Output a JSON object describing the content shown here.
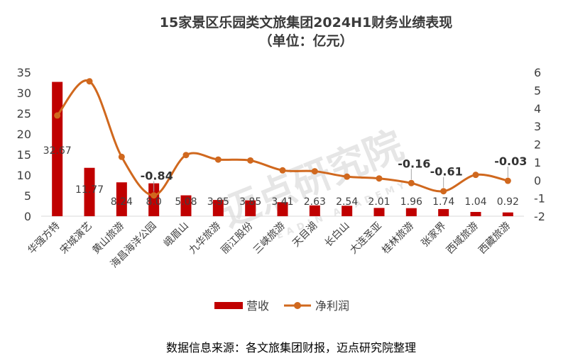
{
  "title_line1": "15家景区乐园类文旅集团2024H1财务业绩表现",
  "title_line2": "（单位：亿元）",
  "source": "数据信息来源：各文旅集团财报，迈点研究院整理",
  "watermark": "迈点研究院",
  "watermark_sub": "MEADIN ACADEMY",
  "colors": {
    "bar": "#c00000",
    "line": "#d0681e",
    "axis": "#d9d9d9"
  },
  "chart_data": {
    "type": "bar",
    "categories": [
      "华强方特",
      "宋城演艺",
      "黄山旅游",
      "海昌海洋公园",
      "峨眉山",
      "九华旅游",
      "丽江股份",
      "三峡旅游",
      "天目湖",
      "长白山",
      "大连圣亚",
      "桂林旅游",
      "张家界",
      "西域旅游",
      "西藏旅游"
    ],
    "series": [
      {
        "name": "营收",
        "type": "bar",
        "axis": "left",
        "values": [
          32.67,
          11.77,
          8.24,
          8.0,
          5.08,
          3.95,
          3.85,
          3.41,
          2.63,
          2.54,
          2.01,
          1.96,
          1.74,
          1.04,
          0.92
        ],
        "labels": [
          "32.67",
          "11.77",
          "8.24",
          "8.0",
          "5.08",
          "3.95",
          "3.85",
          "3.41",
          "2.63",
          "2.54",
          "2.01",
          "1.96",
          "1.74",
          "1.04",
          "0.92"
        ]
      },
      {
        "name": "净利润",
        "type": "line",
        "axis": "right",
        "values": [
          3.6,
          5.5,
          1.3,
          -0.84,
          1.4,
          1.15,
          1.1,
          0.55,
          0.5,
          0.2,
          0.1,
          -0.16,
          -0.61,
          0.3,
          -0.03
        ],
        "labels": [
          "",
          "",
          "",
          "-0.84",
          "",
          "",
          "",
          "",
          "",
          "",
          "",
          "-0.16",
          "-0.61",
          "",
          "-0.03"
        ]
      }
    ],
    "y_left": {
      "min": 0,
      "max": 35,
      "ticks": [
        "0",
        "5",
        "10",
        "15",
        "20",
        "25",
        "30",
        "35"
      ]
    },
    "y_right": {
      "min": -2,
      "max": 6,
      "ticks": [
        "-2",
        "-1",
        "0",
        "1",
        "2",
        "3",
        "4",
        "5",
        "6"
      ]
    },
    "legend": {
      "position": "bottom",
      "items": [
        "营收",
        "净利润"
      ]
    },
    "grid": false
  }
}
